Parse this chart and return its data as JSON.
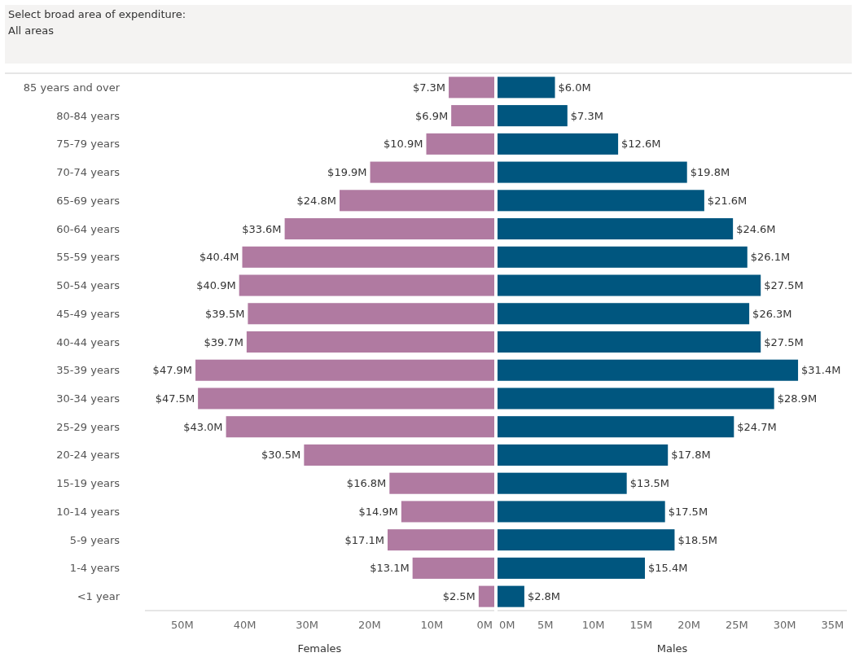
{
  "chart_data": [
    {
      "type": "bar",
      "orientation": "horizontal",
      "xlabel": "Females",
      "annotations": [
        "Select broad area of expenditure:",
        "All areas"
      ],
      "categories": [
        "85 years and over",
        "80-84 years",
        "75-79 years",
        "70-74 years",
        "65-69 years",
        "60-64 years",
        "55-59 years",
        "50-54 years",
        "45-49 years",
        "40-44 years",
        "35-39 years",
        "30-34 years",
        "25-29 years",
        "20-24 years",
        "15-19 years",
        "10-14 years",
        "5-9 years",
        "1-4 years",
        "<1 year"
      ],
      "series": [
        {
          "color": "#b07aa1",
          "values": [
            7.3,
            6.9,
            10.9,
            19.9,
            24.8,
            33.6,
            40.4,
            40.9,
            39.5,
            39.7,
            47.9,
            47.5,
            43.0,
            30.5,
            16.8,
            14.9,
            17.1,
            13.1,
            2.5
          ],
          "value_labels": [
            "$7.3M",
            "$6.9M",
            "$10.9M",
            "$19.9M",
            "$24.8M",
            "$33.6M",
            "$40.4M",
            "$40.9M",
            "$39.5M",
            "$39.7M",
            "$47.9M",
            "$47.5M",
            "$43.0M",
            "$30.5M",
            "$16.8M",
            "$14.9M",
            "$17.1M",
            "$13.1M",
            "$2.5M"
          ]
        }
      ],
      "xlim": [
        56,
        0
      ],
      "xticks": [
        {
          "value": 50,
          "label": "50M"
        },
        {
          "value": 40,
          "label": "40M"
        },
        {
          "value": 30,
          "label": "30M"
        },
        {
          "value": 20,
          "label": "20M"
        },
        {
          "value": 10,
          "label": "10M"
        },
        {
          "value": 0,
          "label": "0M"
        }
      ]
    },
    {
      "type": "bar",
      "orientation": "horizontal",
      "xlabel": "Males",
      "tick_labels": "x",
      "categories": [
        null,
        null,
        null,
        null,
        null,
        null,
        null,
        null,
        null,
        null,
        null,
        null,
        null,
        null,
        null,
        null,
        null,
        null,
        null
      ],
      "series": [
        {
          "color": "#00567f",
          "values": [
            6.0,
            7.3,
            12.6,
            19.8,
            21.6,
            24.6,
            26.1,
            27.5,
            26.3,
            27.5,
            31.4,
            28.9,
            24.7,
            17.8,
            13.5,
            17.5,
            18.5,
            15.4,
            2.8
          ],
          "value_labels": [
            "$6.0M",
            "$7.3M",
            "$12.6M",
            "$19.8M",
            "$21.6M",
            "$24.6M",
            "$26.1M",
            "$27.5M",
            "$26.3M",
            "$27.5M",
            "$31.4M",
            "$28.9M",
            "$24.7M",
            "$17.8M",
            "$13.5M",
            "$17.5M",
            "$18.5M",
            "$15.4M",
            "$2.8M"
          ]
        }
      ],
      "xlim": [
        0,
        36.5
      ],
      "xticks": [
        {
          "value": 0,
          "label": "0M"
        },
        {
          "value": 5,
          "label": "5M"
        },
        {
          "value": 10,
          "label": "10M"
        },
        {
          "value": 15,
          "label": "15M"
        },
        {
          "value": 20,
          "label": "20M"
        },
        {
          "value": 25,
          "label": "25M"
        },
        {
          "value": 30,
          "label": "30M"
        },
        {
          "value": 35,
          "label": "35M"
        }
      ]
    }
  ]
}
